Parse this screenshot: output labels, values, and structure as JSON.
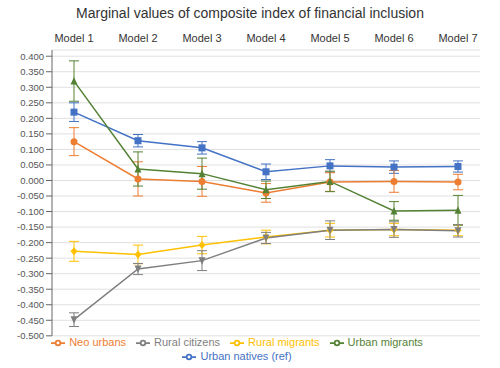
{
  "chart_data": {
    "type": "line",
    "title": "Marginal values of composite index of financial inclusion",
    "categories": [
      "Model 1",
      "Model 2",
      "Model 3",
      "Model 4",
      "Model 5",
      "Model 6",
      "Model 7"
    ],
    "series": [
      {
        "name": "Urban natives (ref)",
        "color": "#4472C4",
        "marker": "square",
        "values": [
          0.22,
          0.128,
          0.105,
          0.028,
          0.047,
          0.043,
          0.045
        ],
        "yerr": [
          0.03,
          0.02,
          0.02,
          0.025,
          0.02,
          0.02,
          0.018
        ]
      },
      {
        "name": "Neo urbans",
        "color": "#ED7D31",
        "marker": "circle",
        "values": [
          0.125,
          0.005,
          -0.003,
          -0.04,
          -0.005,
          -0.003,
          -0.005
        ],
        "yerr": [
          0.045,
          0.055,
          0.048,
          0.03,
          0.03,
          0.035,
          0.025
        ]
      },
      {
        "name": "Urban migrants",
        "color": "#548235",
        "marker": "triangle",
        "values": [
          0.32,
          0.037,
          0.022,
          -0.03,
          -0.003,
          -0.098,
          -0.096
        ],
        "yerr": [
          0.065,
          0.055,
          0.05,
          0.028,
          0.033,
          0.03,
          0.048
        ]
      },
      {
        "name": "Rural migrants",
        "color": "#FFC000",
        "marker": "diamond",
        "values": [
          -0.228,
          -0.238,
          -0.208,
          -0.182,
          -0.16,
          -0.158,
          -0.16
        ],
        "yerr": [
          0.032,
          0.03,
          0.028,
          0.022,
          0.022,
          0.02,
          0.018
        ]
      },
      {
        "name": "Rural citizens",
        "color": "#7F7F7F",
        "marker": "triangle-down",
        "values": [
          -0.448,
          -0.285,
          -0.258,
          -0.185,
          -0.16,
          -0.158,
          -0.162
        ],
        "yerr": [
          0.022,
          0.018,
          0.032,
          0.018,
          0.03,
          0.025,
          0.02
        ]
      }
    ],
    "ylim": [
      -0.5,
      0.42
    ],
    "yticks": [
      {
        "value": -0.5,
        "label": "-0.500"
      },
      {
        "value": -0.45,
        "label": "-0.450"
      },
      {
        "value": -0.4,
        "label": "-0.400"
      },
      {
        "value": -0.35,
        "label": "-0.350"
      },
      {
        "value": -0.3,
        "label": "-0.300"
      },
      {
        "value": -0.25,
        "label": "-0.250"
      },
      {
        "value": -0.2,
        "label": "-0.200"
      },
      {
        "value": -0.15,
        "label": "-0.150"
      },
      {
        "value": -0.1,
        "label": "-0.100"
      },
      {
        "value": -0.05,
        "label": "-0.050"
      },
      {
        "value": 0.0,
        "label": "0.000"
      },
      {
        "value": 0.05,
        "label": "0.050"
      },
      {
        "value": 0.1,
        "label": "0.100"
      },
      {
        "value": 0.15,
        "label": "0.150"
      },
      {
        "value": 0.2,
        "label": "0.200"
      },
      {
        "value": 0.25,
        "label": "0.250"
      },
      {
        "value": 0.3,
        "label": "0.300"
      },
      {
        "value": 0.35,
        "label": "0.350"
      },
      {
        "value": 0.4,
        "label": "0.400"
      }
    ],
    "grid": true,
    "legend": "bottom"
  }
}
